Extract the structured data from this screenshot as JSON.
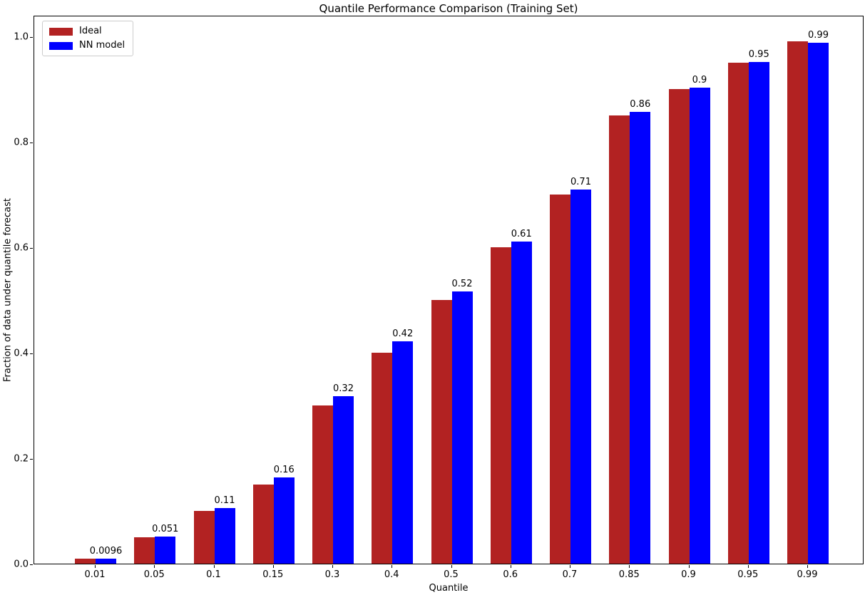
{
  "chart_data": {
    "type": "bar",
    "title": "Quantile Performance Comparison (Training Set)",
    "xlabel": "Quantile",
    "ylabel": "Fraction of data under quantile forecast",
    "categories": [
      "0.01",
      "0.05",
      "0.1",
      "0.15",
      "0.3",
      "0.4",
      "0.5",
      "0.6",
      "0.7",
      "0.85",
      "0.9",
      "0.95",
      "0.99"
    ],
    "series": [
      {
        "name": "Ideal",
        "color": "#b22222",
        "values": [
          0.01,
          0.05,
          0.1,
          0.15,
          0.3,
          0.4,
          0.5,
          0.6,
          0.7,
          0.85,
          0.9,
          0.95,
          0.99
        ]
      },
      {
        "name": "NN model",
        "color": "#0000ff",
        "values": [
          0.0096,
          0.051,
          0.106,
          0.163,
          0.318,
          0.422,
          0.516,
          0.611,
          0.709,
          0.857,
          0.903,
          0.951,
          0.988
        ],
        "bar_labels": [
          "0.0096",
          "0.051",
          "0.11",
          "0.16",
          "0.32",
          "0.42",
          "0.52",
          "0.61",
          "0.71",
          "0.86",
          "0.9",
          "0.95",
          "0.99"
        ]
      }
    ],
    "yticks": [
      "0.0",
      "0.2",
      "0.4",
      "0.6",
      "0.8",
      "1.0"
    ],
    "ylim": [
      0,
      1.04
    ],
    "grid": false,
    "legend_position": "upper left",
    "axis_color": "#000000",
    "background_color": "#ffffff"
  }
}
